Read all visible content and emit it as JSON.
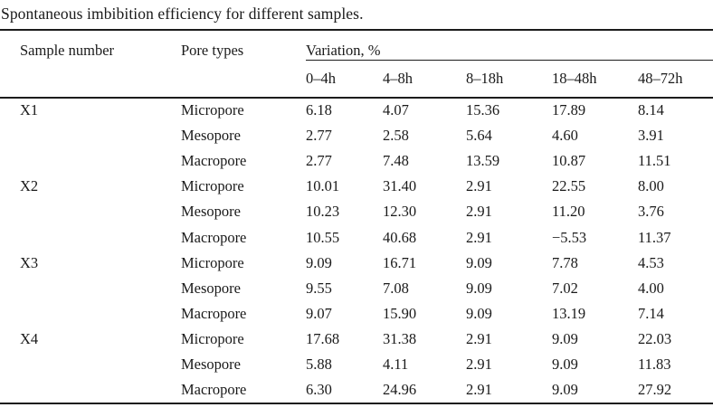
{
  "title": "Spontaneous imbibition efficiency for different samples.",
  "table": {
    "col_headers": {
      "sample": "Sample number",
      "pore": "Pore types",
      "variation": "Variation, %"
    },
    "time_headers": [
      "0–4h",
      "4–8h",
      "8–18h",
      "18–48h",
      "48–72h"
    ],
    "rows": [
      {
        "sample": "X1",
        "pore": "Micropore",
        "values": [
          "6.18",
          "4.07",
          "15.36",
          "17.89",
          "8.14"
        ]
      },
      {
        "sample": "",
        "pore": "Mesopore",
        "values": [
          "2.77",
          "2.58",
          "5.64",
          "4.60",
          "3.91"
        ]
      },
      {
        "sample": "",
        "pore": "Macropore",
        "values": [
          "2.77",
          "7.48",
          "13.59",
          "10.87",
          "11.51"
        ]
      },
      {
        "sample": "X2",
        "pore": "Micropore",
        "values": [
          "10.01",
          "31.40",
          "2.91",
          "22.55",
          "8.00"
        ]
      },
      {
        "sample": "",
        "pore": "Mesopore",
        "values": [
          "10.23",
          "12.30",
          "2.91",
          "11.20",
          "3.76"
        ]
      },
      {
        "sample": "",
        "pore": "Macropore",
        "values": [
          "10.55",
          "40.68",
          "2.91",
          "−5.53",
          "11.37"
        ]
      },
      {
        "sample": "X3",
        "pore": "Micropore",
        "values": [
          "9.09",
          "16.71",
          "9.09",
          "7.78",
          "4.53"
        ]
      },
      {
        "sample": "",
        "pore": "Mesopore",
        "values": [
          "9.55",
          "7.08",
          "9.09",
          "7.02",
          "4.00"
        ]
      },
      {
        "sample": "",
        "pore": "Macropore",
        "values": [
          "9.07",
          "15.90",
          "9.09",
          "13.19",
          "7.14"
        ]
      },
      {
        "sample": "X4",
        "pore": "Micropore",
        "values": [
          "17.68",
          "31.38",
          "2.91",
          "9.09",
          "22.03"
        ]
      },
      {
        "sample": "",
        "pore": "Mesopore",
        "values": [
          "5.88",
          "4.11",
          "2.91",
          "9.09",
          "11.83"
        ]
      },
      {
        "sample": "",
        "pore": "Macropore",
        "values": [
          "6.30",
          "24.96",
          "2.91",
          "9.09",
          "27.92"
        ]
      }
    ]
  }
}
